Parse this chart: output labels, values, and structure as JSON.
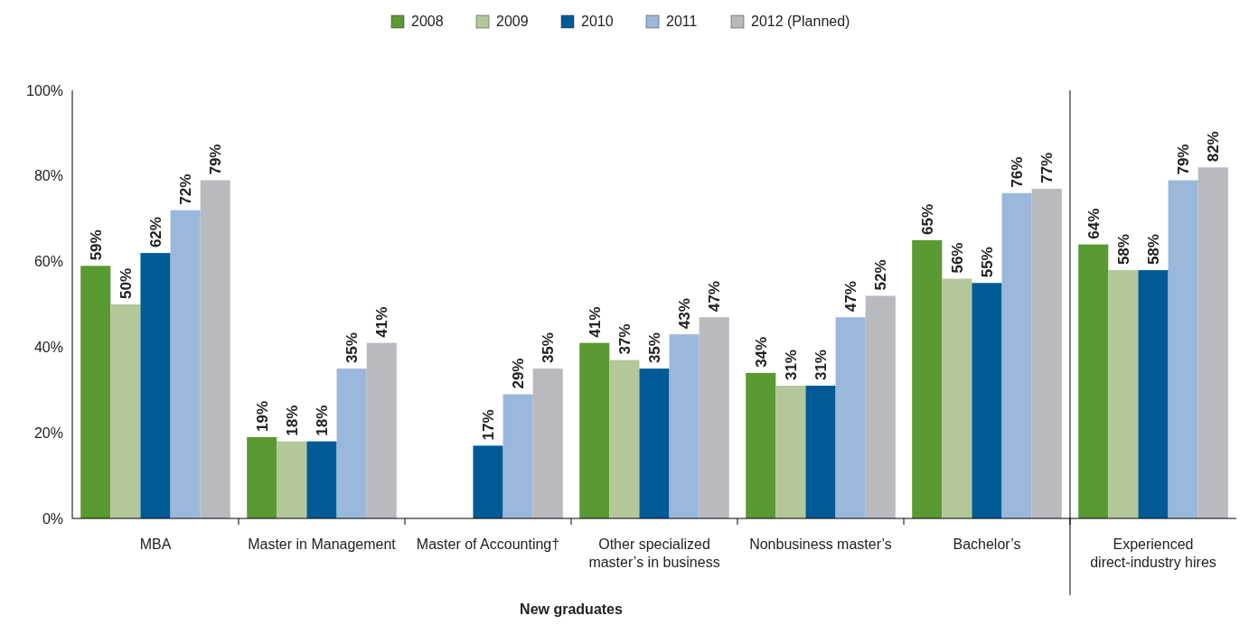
{
  "chart_data": {
    "type": "bar",
    "xlabel": "New graduates",
    "categories": [
      "MBA",
      "Master in Management",
      "Master of Accounting†",
      "Other specialized master’s in business",
      "Nonbusiness master’s",
      "Bachelor’s",
      "Experienced direct-industry hires"
    ],
    "series": [
      {
        "name": "2008",
        "color": "#5a9a32",
        "values": [
          59,
          19,
          null,
          41,
          34,
          65,
          64
        ],
        "value_labels": [
          "59%",
          "19%",
          null,
          "41%",
          "34%",
          "65%",
          "64%"
        ]
      },
      {
        "name": "2009",
        "color": "#b3c799",
        "values": [
          50,
          18,
          null,
          37,
          31,
          56,
          58
        ],
        "value_labels": [
          "50%",
          "18%",
          null,
          "37%",
          "31%",
          "56%",
          "58%"
        ]
      },
      {
        "name": "2010",
        "color": "#005a96",
        "values": [
          62,
          18,
          17,
          35,
          31,
          55,
          58
        ],
        "value_labels": [
          "62%",
          "18%",
          "17%",
          "35%",
          "31%",
          "55%",
          "58%"
        ]
      },
      {
        "name": "2011",
        "color": "#9ab8dc",
        "values": [
          72,
          35,
          29,
          43,
          47,
          76,
          79
        ],
        "value_labels": [
          "72%",
          "35%",
          "29%",
          "43%",
          "47%",
          "76%",
          "79%"
        ]
      },
      {
        "name": "2012 (Planned)",
        "color": "#b9babe",
        "values": [
          79,
          41,
          35,
          47,
          52,
          77,
          82
        ],
        "value_labels": [
          "79%",
          "41%",
          "35%",
          "47%",
          "52%",
          "77%",
          "82%"
        ]
      }
    ],
    "ylim": [
      0,
      100
    ],
    "yticks": [
      {
        "value": 0,
        "label": "0%"
      },
      {
        "value": 20,
        "label": "20%"
      },
      {
        "value": 40,
        "label": "40%"
      },
      {
        "value": 60,
        "label": "60%"
      },
      {
        "value": 80,
        "label": "80%"
      },
      {
        "value": 100,
        "label": "100%"
      }
    ],
    "legend": "top",
    "grid": false
  }
}
